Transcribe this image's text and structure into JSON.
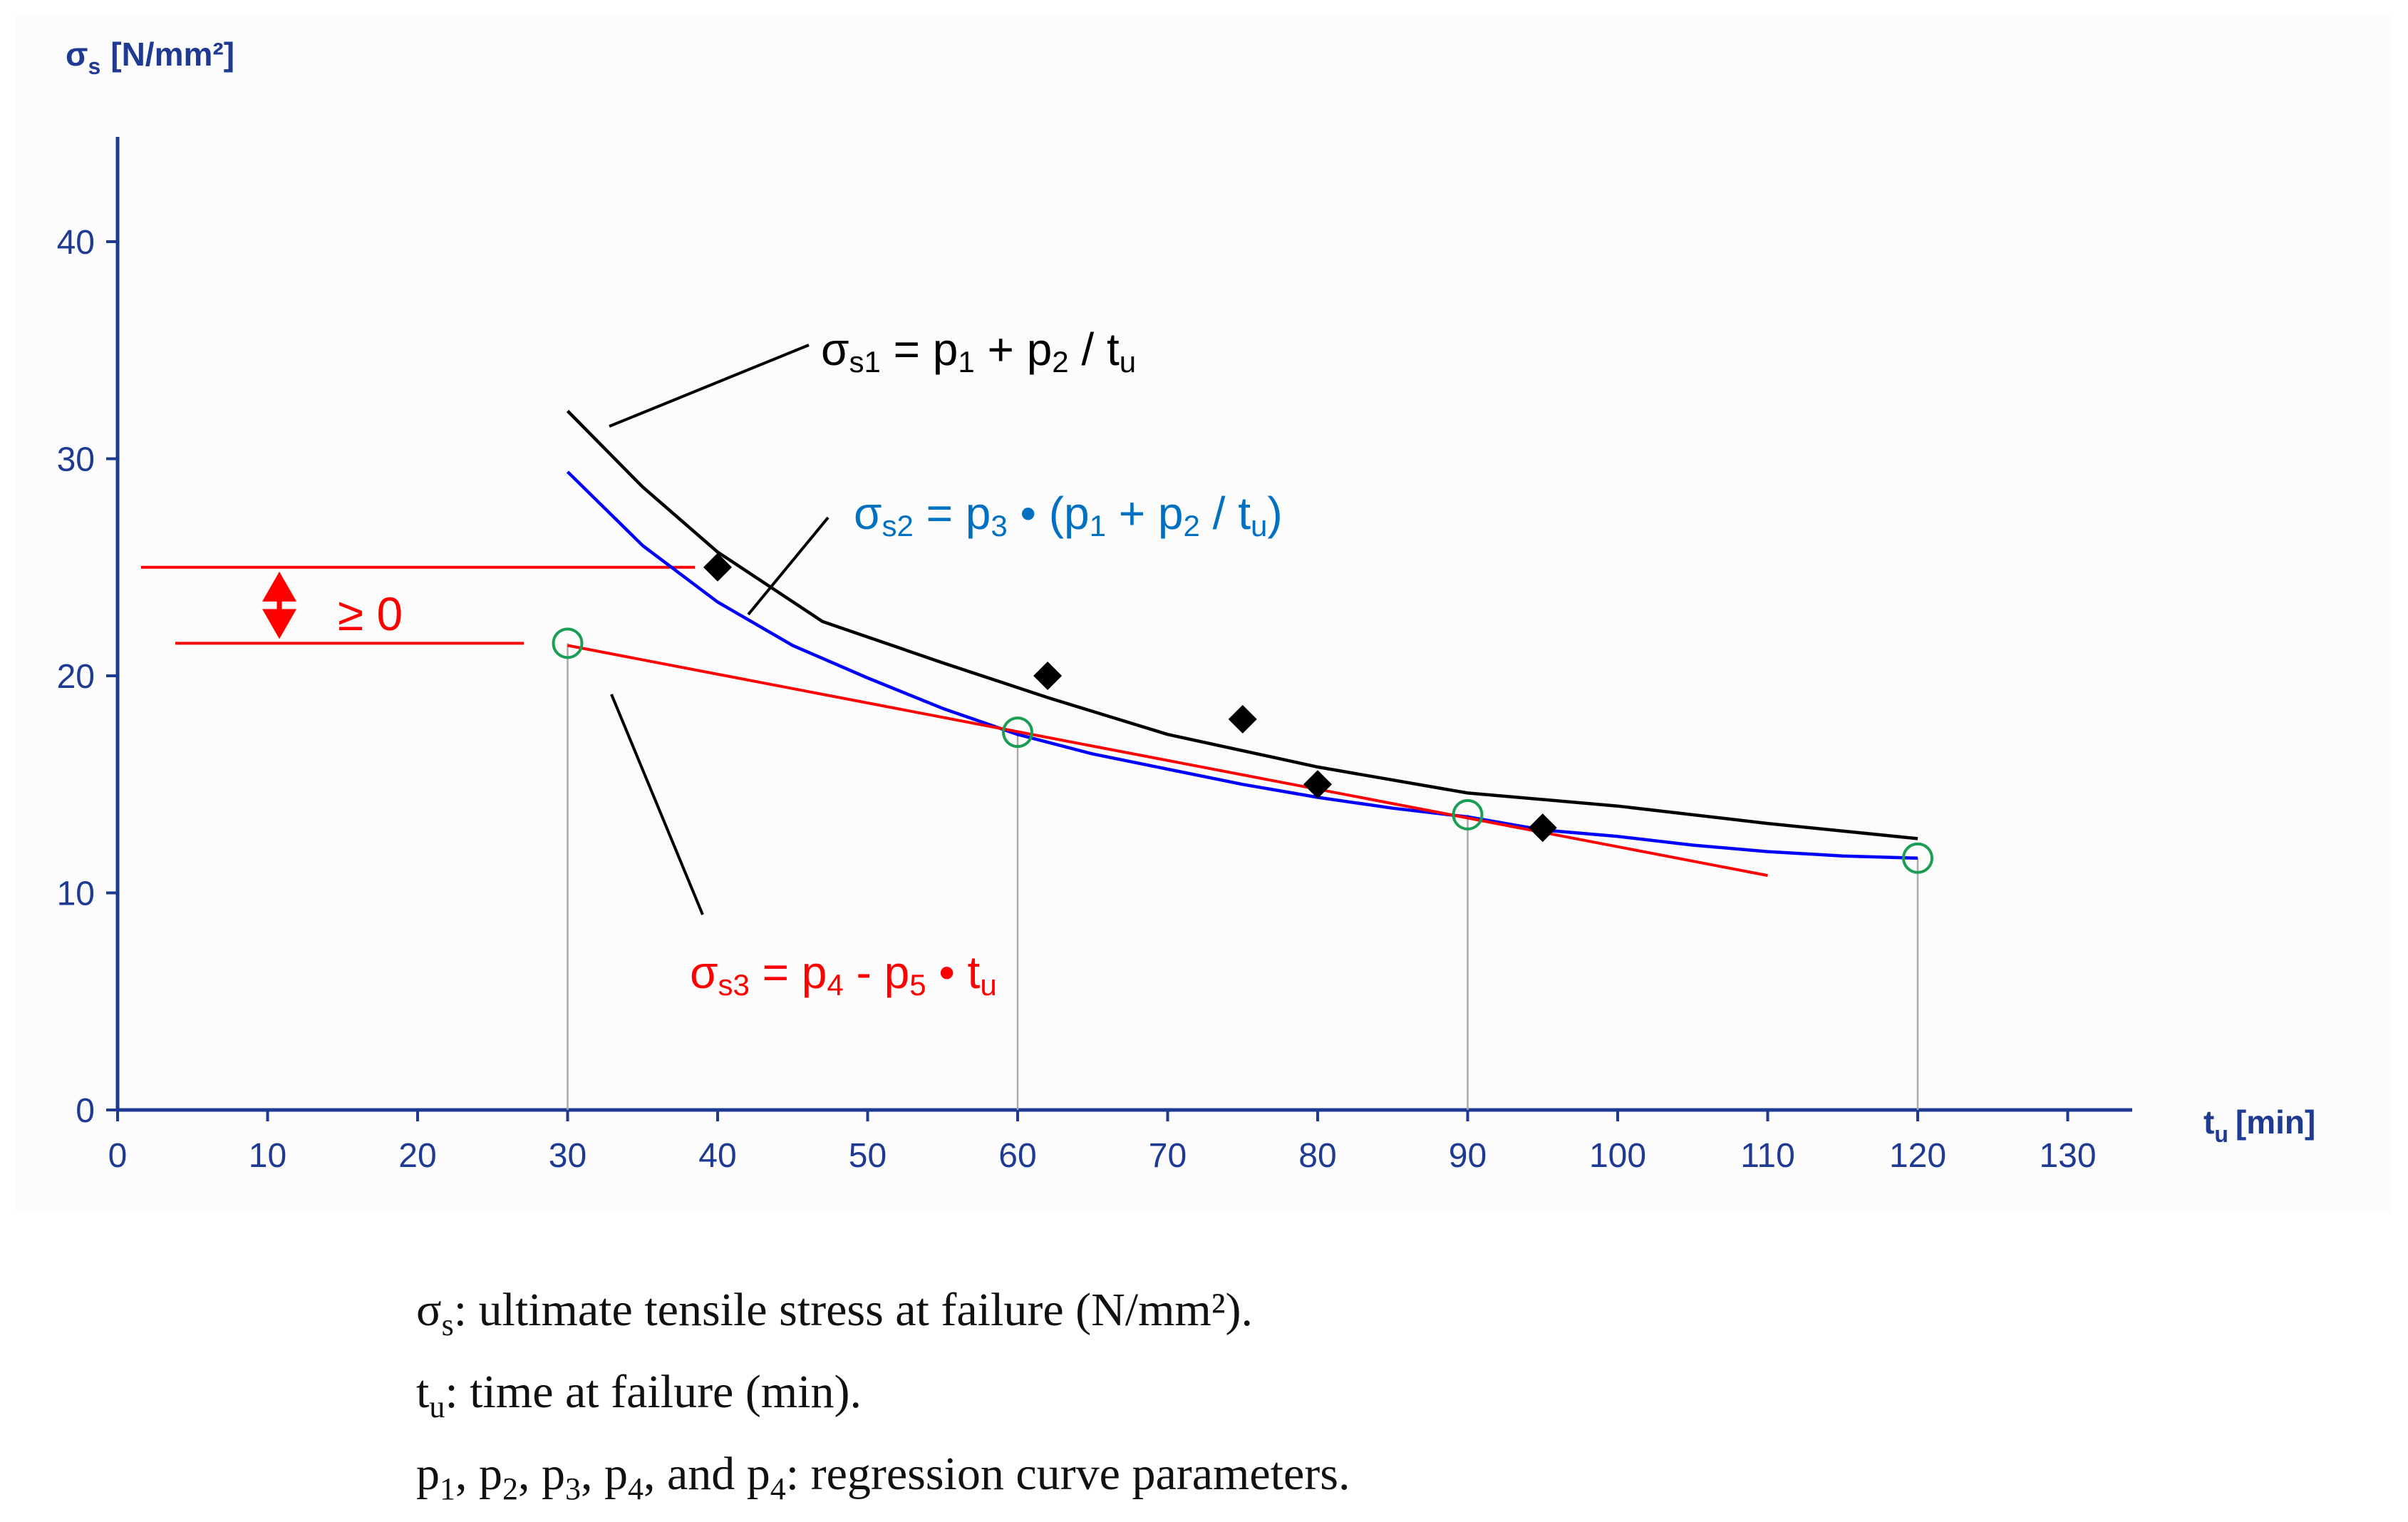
{
  "chart_data": {
    "type": "line",
    "title": "",
    "ylabel": {
      "symbol": "σ",
      "sub": "s",
      "unit": "[N/mm²]"
    },
    "xlabel": {
      "symbol": "t",
      "sub": "u",
      "unit": "[min]"
    },
    "xlim": [
      0,
      135
    ],
    "ylim": [
      0,
      45
    ],
    "x_ticks": [
      0,
      10,
      20,
      30,
      40,
      50,
      60,
      70,
      80,
      90,
      100,
      110,
      120,
      130
    ],
    "y_ticks": [
      0,
      10,
      20,
      30,
      40
    ],
    "grid": false,
    "series": [
      {
        "name": "σs1 = p1 + p2 / tu",
        "color": "#000000",
        "x": [
          30,
          35,
          40,
          47,
          55,
          62,
          70,
          80,
          90,
          100,
          110,
          120
        ],
        "values": [
          32.2,
          28.7,
          25.7,
          22.5,
          20.6,
          19.0,
          17.3,
          15.8,
          14.6,
          14.0,
          13.2,
          12.5
        ]
      },
      {
        "name": "σs2 = p3 • (p1 + p2 / tu)",
        "color": "#0000ff",
        "x": [
          30,
          35,
          40,
          45,
          50,
          55,
          60,
          65,
          70,
          75,
          80,
          85,
          90,
          95,
          100,
          105,
          110,
          115,
          120
        ],
        "values": [
          29.4,
          26.0,
          23.4,
          21.4,
          19.9,
          18.5,
          17.3,
          16.4,
          15.7,
          15.0,
          14.4,
          13.9,
          13.5,
          12.9,
          12.6,
          12.2,
          11.9,
          11.7,
          11.6
        ]
      },
      {
        "name": "σs3 = p4 - p5 • tu",
        "color": "#ff0000",
        "x": [
          30,
          110
        ],
        "values": [
          21.4,
          10.8
        ]
      }
    ],
    "measured_points": {
      "x": [
        40,
        62,
        75,
        80,
        95
      ],
      "values": [
        25,
        20,
        18,
        15,
        13
      ]
    },
    "circle_points": {
      "x": [
        30,
        60,
        90,
        120
      ],
      "values": [
        21.5,
        17.4,
        13.6,
        11.6
      ]
    },
    "annotations": {
      "eq1": {
        "base": "σ",
        "sub": "s1",
        "rest": " = p",
        "sub2": "1",
        "rest2": " + p",
        "sub3": "2",
        "rest3": " / t",
        "sub4": "u"
      },
      "eq2": {
        "base": "σ",
        "sub": "s2",
        "rest": " = p",
        "sub2": "3",
        "rest2": " • (p",
        "sub3": "1",
        "rest3": " + p",
        "sub4": "2",
        "rest4": " / t",
        "sub5": "u",
        "rest5": ")"
      },
      "eq3": {
        "base": "σ",
        "sub": "s3",
        "rest": " = p",
        "sub2": "4",
        "rest2": " - p",
        "sub3": "5",
        "rest3": " • t",
        "sub4": "u"
      },
      "gap": "≥ 0",
      "gap_levels": [
        25,
        21.5
      ]
    },
    "colors": {
      "black": "#000000",
      "blue": "#0000ff",
      "red": "#ff0000",
      "eq2_text": "#0070c0",
      "circle": "#1a9e54",
      "axis": "#1f3a93",
      "dropline": "#aaaaaa"
    }
  },
  "caption": {
    "line1": {
      "sym": "σ",
      "sub": "s",
      "text": ": ultimate tensile stress at failure (N/mm²)."
    },
    "line2": {
      "sym": "t",
      "sub": "u",
      "text": ": time at failure (min)."
    },
    "line3": {
      "p1": "p",
      "s1": "1",
      "p2": ", p",
      "s2": "2",
      "p3": ", p",
      "s3": "3",
      "p4": ", p",
      "s4": "4",
      "p5": ",  and  p",
      "s5": "4",
      "text": ": regression curve parameters."
    }
  }
}
